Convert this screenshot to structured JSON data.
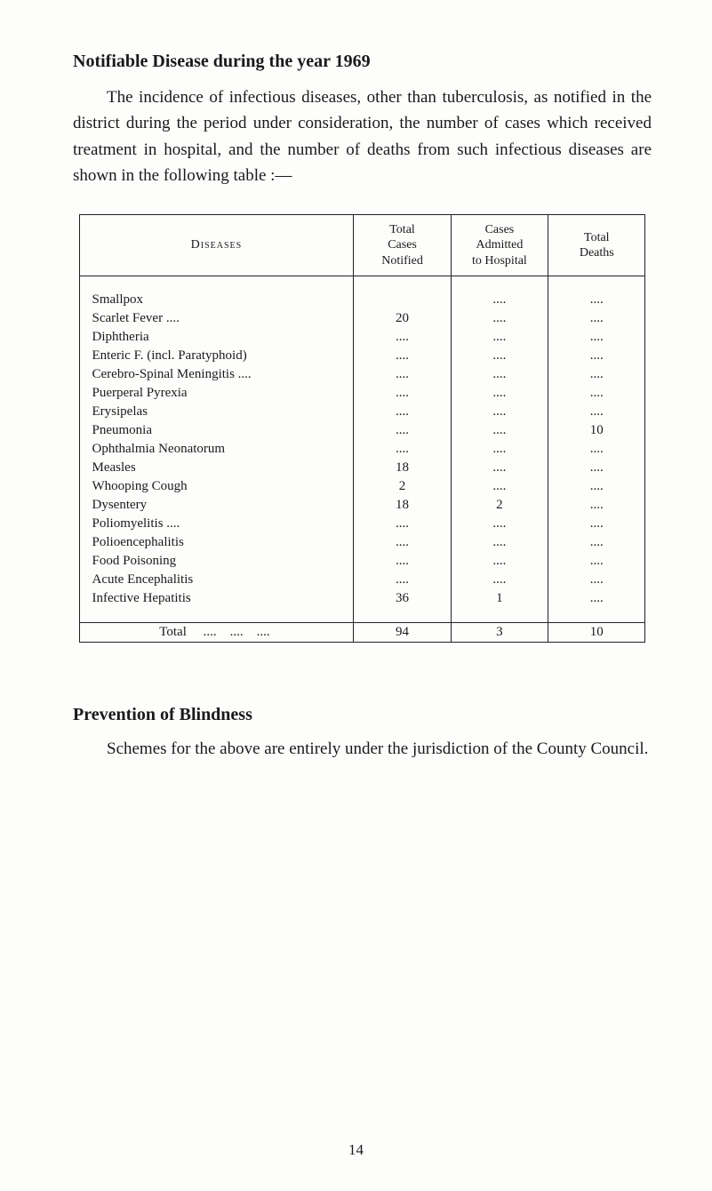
{
  "title": "Notifiable Disease during the year 1969",
  "paragraph": "The incidence of infectious diseases, other than tuberculosis, as notified in the district during the period under consideration, the number of cases which received treatment in hospital, and the number of deaths from such infectious diseases are shown in the following table :—",
  "table": {
    "headers": {
      "diseases": "Diseases",
      "total_cases": "Total\nCases\nNotified",
      "admitted": "Cases\nAdmitted\nto Hospital",
      "deaths": "Total\nDeaths"
    },
    "rows": [
      {
        "name": "Smallpox",
        "cases": "",
        "admitted": "....",
        "deaths": "...."
      },
      {
        "name": "Scarlet Fever ....",
        "cases": "20",
        "admitted": "....",
        "deaths": "...."
      },
      {
        "name": "Diphtheria",
        "cases": "....",
        "admitted": "....",
        "deaths": "...."
      },
      {
        "name": "Enteric F. (incl. Paratyphoid)",
        "cases": "....",
        "admitted": "....",
        "deaths": "...."
      },
      {
        "name": "Cerebro-Spinal Meningitis ....",
        "cases": "....",
        "admitted": "....",
        "deaths": "...."
      },
      {
        "name": "Puerperal Pyrexia",
        "cases": "....",
        "admitted": "....",
        "deaths": "...."
      },
      {
        "name": "Erysipelas",
        "cases": "....",
        "admitted": "....",
        "deaths": "...."
      },
      {
        "name": "Pneumonia",
        "cases": "....",
        "admitted": "....",
        "deaths": "10"
      },
      {
        "name": "Ophthalmia Neonatorum",
        "cases": "....",
        "admitted": "....",
        "deaths": "...."
      },
      {
        "name": "Measles",
        "cases": "18",
        "admitted": "....",
        "deaths": "...."
      },
      {
        "name": "Whooping Cough",
        "cases": "2",
        "admitted": "....",
        "deaths": "...."
      },
      {
        "name": "Dysentery",
        "cases": "18",
        "admitted": "2",
        "deaths": "...."
      },
      {
        "name": "Poliomyelitis ....",
        "cases": "....",
        "admitted": "....",
        "deaths": "...."
      },
      {
        "name": "Polioencephalitis",
        "cases": "....",
        "admitted": "....",
        "deaths": "...."
      },
      {
        "name": "Food Poisoning",
        "cases": "....",
        "admitted": "....",
        "deaths": "...."
      },
      {
        "name": "Acute Encephalitis",
        "cases": "....",
        "admitted": "....",
        "deaths": "...."
      },
      {
        "name": "Infective Hepatitis",
        "cases": "36",
        "admitted": "1",
        "deaths": "...."
      }
    ],
    "total": {
      "label": "Total",
      "cases": "94",
      "admitted": "3",
      "deaths": "10"
    }
  },
  "section2_title": "Prevention of Blindness",
  "section2_para": "Schemes for the above are entirely under the jurisdiction of the County Council.",
  "page_number": "14",
  "styling": {
    "background_color": "#fdfdfb",
    "text_color": "#1a1a1a",
    "title_fontsize": 20,
    "body_fontsize": 19,
    "table_fontsize": 15,
    "border_color": "#222222",
    "font_family": "Georgia, Times New Roman, serif"
  }
}
